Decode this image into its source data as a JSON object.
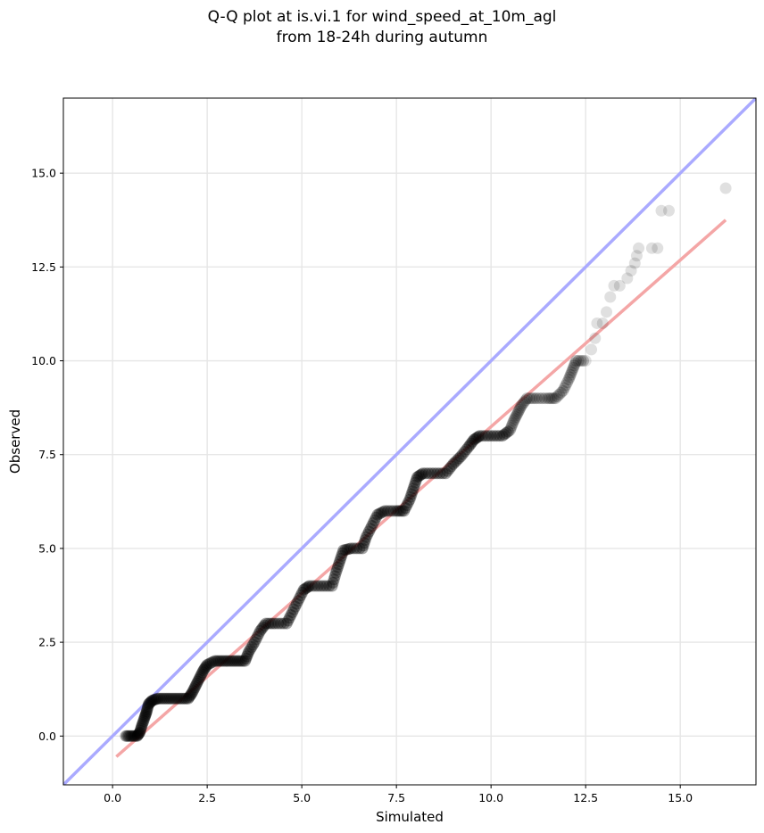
{
  "chart_data": {
    "type": "scatter",
    "title": "Q-Q plot at is.vi.1 for wind_speed_at_10m_agl",
    "subtitle": "from 18-24h during autumn",
    "xlabel": "Simulated",
    "ylabel": "Observed",
    "xlim": [
      -1.3,
      17.0
    ],
    "ylim": [
      -1.3,
      17.0
    ],
    "x_ticks": [
      "0.0",
      "2.5",
      "5.0",
      "7.5",
      "10.0",
      "12.5",
      "15.0"
    ],
    "y_ticks": [
      "0.0",
      "2.5",
      "5.0",
      "7.5",
      "10.0",
      "12.5",
      "15.0"
    ],
    "grid": true,
    "reference_line": {
      "description": "1:1 line",
      "color": "#aaaaff"
    },
    "fit_line": {
      "x": [
        0.1,
        16.2
      ],
      "y": [
        -0.55,
        13.75
      ],
      "color": "#f4a6a6"
    },
    "marker_color": "#000000",
    "quantile_points": [
      [
        0.35,
        0.0
      ],
      [
        0.5,
        0.0
      ],
      [
        0.65,
        0.0
      ],
      [
        0.72,
        0.1
      ],
      [
        0.78,
        0.3
      ],
      [
        0.85,
        0.5
      ],
      [
        0.9,
        0.65
      ],
      [
        0.95,
        0.85
      ],
      [
        1.05,
        0.95
      ],
      [
        1.2,
        1.0
      ],
      [
        1.4,
        1.0
      ],
      [
        1.6,
        1.0
      ],
      [
        1.8,
        1.0
      ],
      [
        2.0,
        1.0
      ],
      [
        2.1,
        1.15
      ],
      [
        2.2,
        1.35
      ],
      [
        2.3,
        1.55
      ],
      [
        2.4,
        1.75
      ],
      [
        2.5,
        1.9
      ],
      [
        2.7,
        2.0
      ],
      [
        2.9,
        2.0
      ],
      [
        3.1,
        2.0
      ],
      [
        3.3,
        2.0
      ],
      [
        3.5,
        2.0
      ],
      [
        3.6,
        2.25
      ],
      [
        3.75,
        2.5
      ],
      [
        3.9,
        2.8
      ],
      [
        4.05,
        3.0
      ],
      [
        4.3,
        3.0
      ],
      [
        4.6,
        3.0
      ],
      [
        4.75,
        3.3
      ],
      [
        4.9,
        3.6
      ],
      [
        5.05,
        3.9
      ],
      [
        5.2,
        4.0
      ],
      [
        5.5,
        4.0
      ],
      [
        5.8,
        4.0
      ],
      [
        5.9,
        4.35
      ],
      [
        6.0,
        4.65
      ],
      [
        6.1,
        4.95
      ],
      [
        6.3,
        5.0
      ],
      [
        6.6,
        5.0
      ],
      [
        6.7,
        5.3
      ],
      [
        6.85,
        5.6
      ],
      [
        7.0,
        5.9
      ],
      [
        7.2,
        6.0
      ],
      [
        7.5,
        6.0
      ],
      [
        7.7,
        6.0
      ],
      [
        7.85,
        6.3
      ],
      [
        7.95,
        6.6
      ],
      [
        8.05,
        6.9
      ],
      [
        8.2,
        7.0
      ],
      [
        8.5,
        7.0
      ],
      [
        8.8,
        7.0
      ],
      [
        9.0,
        7.25
      ],
      [
        9.2,
        7.45
      ],
      [
        9.4,
        7.7
      ],
      [
        9.55,
        7.9
      ],
      [
        9.7,
        8.0
      ],
      [
        10.0,
        8.0
      ],
      [
        10.3,
        8.0
      ],
      [
        10.5,
        8.15
      ],
      [
        10.6,
        8.4
      ],
      [
        10.7,
        8.6
      ],
      [
        10.8,
        8.8
      ],
      [
        10.95,
        9.0
      ],
      [
        11.2,
        9.0
      ],
      [
        11.5,
        9.0
      ],
      [
        11.7,
        9.0
      ],
      [
        11.9,
        9.2
      ],
      [
        12.05,
        9.5
      ],
      [
        12.15,
        9.75
      ],
      [
        12.25,
        10.0
      ],
      [
        12.5,
        10.0
      ],
      [
        12.65,
        10.3
      ],
      [
        12.75,
        10.6
      ],
      [
        12.8,
        11.0
      ],
      [
        12.95,
        11.0
      ],
      [
        13.05,
        11.3
      ],
      [
        13.15,
        11.7
      ],
      [
        13.25,
        12.0
      ],
      [
        13.4,
        12.0
      ],
      [
        13.6,
        12.2
      ],
      [
        13.7,
        12.4
      ],
      [
        13.8,
        12.6
      ],
      [
        13.85,
        12.8
      ],
      [
        13.9,
        13.0
      ],
      [
        14.25,
        13.0
      ],
      [
        14.4,
        13.0
      ],
      [
        14.5,
        14.0
      ],
      [
        14.7,
        14.0
      ],
      [
        16.2,
        14.6
      ]
    ]
  }
}
